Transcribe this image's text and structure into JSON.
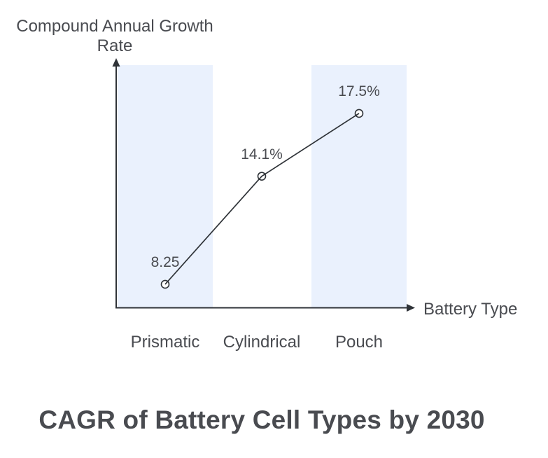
{
  "page": {
    "background": "#FFFFFF"
  },
  "chart_data": {
    "type": "line",
    "title": "CAGR of Battery Cell Types by 2030",
    "xlabel": "Battery Type",
    "ylabel": "Compound Annual Growth Rate",
    "categories": [
      "Prismatic",
      "Cylindrical",
      "Pouch"
    ],
    "values": [
      8.25,
      14.1,
      17.5
    ],
    "point_labels": [
      "8.25",
      "14.1%",
      "17.5%"
    ],
    "layout": {
      "grid": false,
      "legend": false,
      "axis_arrows": true,
      "marker": "open-circle",
      "band_highlighted_categories": [
        "Prismatic",
        "Pouch"
      ],
      "title_position": "bottom"
    },
    "colors": {
      "band": "#EAF1FD",
      "line": "#2F3338",
      "marker_fill": "#FFFFFF",
      "text": "#494B50"
    }
  }
}
